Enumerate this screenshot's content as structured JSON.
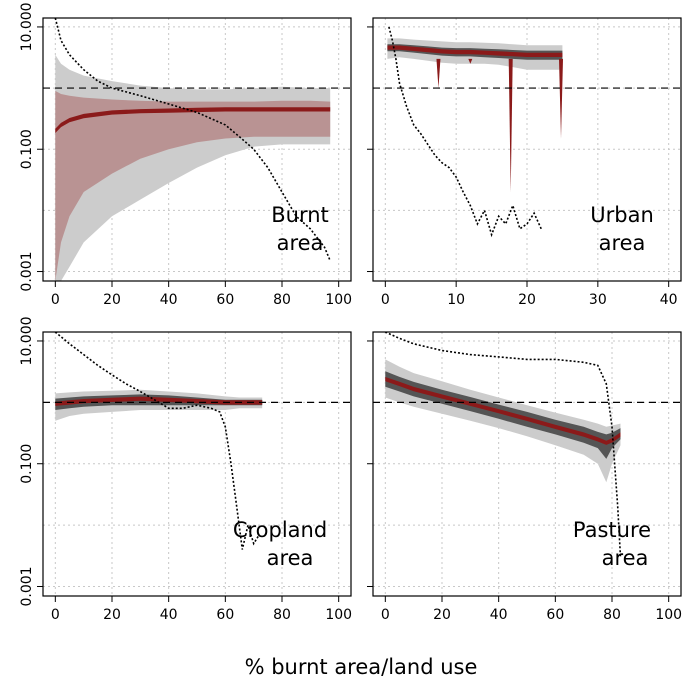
{
  "xlabel": "% burnt area/land use",
  "colors": {
    "band_red_dark": "#8b1a1a",
    "band_red_light": "#b99393",
    "band_grey_dark": "#555555",
    "band_grey_light": "#cccccc",
    "grid": "#c8c8c8"
  },
  "chart_data": [
    {
      "type": "area",
      "panel": "top-left",
      "label_lines": [
        "Burnt",
        "area"
      ],
      "xlim": [
        0,
        100
      ],
      "xticks": [
        0,
        20,
        40,
        60,
        80,
        100
      ],
      "ylim": [
        0.0007,
        14
      ],
      "log_y": true,
      "yticks": [
        0.001,
        0.1,
        10
      ],
      "ytick_labels": [
        "0.001",
        "0.100",
        "10.000"
      ],
      "reference_y": 1,
      "band": {
        "x": [
          0,
          2,
          5,
          10,
          20,
          30,
          40,
          50,
          60,
          70,
          80,
          90,
          97
        ],
        "outer_low": [
          0.0007,
          0.0007,
          0.0012,
          0.003,
          0.008,
          0.015,
          0.028,
          0.05,
          0.08,
          0.11,
          0.12,
          0.12,
          0.12
        ],
        "inner_low": [
          0.0007,
          0.003,
          0.008,
          0.02,
          0.04,
          0.07,
          0.1,
          0.13,
          0.15,
          0.16,
          0.16,
          0.16,
          0.16
        ],
        "median": [
          0.2,
          0.25,
          0.3,
          0.35,
          0.4,
          0.42,
          0.43,
          0.44,
          0.45,
          0.45,
          0.45,
          0.45,
          0.45
        ],
        "inner_high": [
          0.9,
          0.8,
          0.75,
          0.7,
          0.65,
          0.62,
          0.6,
          0.6,
          0.6,
          0.6,
          0.62,
          0.62,
          0.6
        ],
        "outer_high": [
          3.5,
          2.5,
          2.0,
          1.6,
          1.3,
          1.1,
          1.0,
          0.95,
          0.95,
          1.0,
          1.05,
          1.0,
          1.0
        ]
      },
      "dotted_line": {
        "x": [
          0,
          2,
          5,
          10,
          15,
          20,
          30,
          40,
          50,
          60,
          65,
          70,
          75,
          80,
          85,
          90,
          95,
          97
        ],
        "y": [
          14,
          6,
          3.5,
          2.0,
          1.3,
          1.0,
          0.75,
          0.55,
          0.4,
          0.25,
          0.16,
          0.1,
          0.05,
          0.02,
          0.008,
          0.005,
          0.0025,
          0.0015
        ]
      }
    },
    {
      "type": "area",
      "panel": "top-right",
      "label_lines": [
        "Urban",
        "area"
      ],
      "xlim": [
        0,
        40
      ],
      "xticks": [
        0,
        10,
        20,
        30,
        40
      ],
      "ylim": [
        0.0007,
        14
      ],
      "log_y": true,
      "yticks": [
        0.001,
        0.1,
        10
      ],
      "ytick_labels": [
        "0.001",
        "0.100",
        "10.000"
      ],
      "reference_y": 1,
      "band": {
        "x": [
          0.3,
          2,
          4,
          6,
          8,
          10,
          12,
          14,
          16,
          18,
          20,
          22,
          24,
          25
        ],
        "outer_low": [
          3.0,
          3.2,
          3.0,
          2.8,
          2.6,
          2.5,
          2.5,
          2.5,
          2.4,
          2.2,
          2.0,
          2.0,
          2.0,
          2.0
        ],
        "inner_low": [
          4.0,
          4.0,
          3.8,
          3.6,
          3.4,
          3.3,
          3.3,
          3.2,
          3.1,
          3.0,
          2.9,
          2.9,
          2.9,
          2.9
        ],
        "median": [
          4.6,
          4.6,
          4.4,
          4.2,
          4.0,
          3.9,
          3.9,
          3.8,
          3.7,
          3.6,
          3.5,
          3.5,
          3.5,
          3.5
        ],
        "inner_high": [
          5.2,
          5.2,
          5.0,
          4.8,
          4.6,
          4.5,
          4.5,
          4.4,
          4.3,
          4.2,
          4.1,
          4.1,
          4.1,
          4.1
        ],
        "outer_high": [
          6.5,
          6.5,
          6.2,
          6.0,
          5.8,
          5.6,
          5.6,
          5.5,
          5.4,
          5.2,
          5.0,
          5.0,
          5.0,
          5.0
        ]
      },
      "dotted_line": {
        "x": [
          0.5,
          1,
          1.5,
          2,
          3,
          4,
          5,
          6,
          7,
          8,
          9,
          10,
          11,
          12,
          13,
          14,
          15,
          16,
          17,
          18,
          19,
          20,
          21,
          22
        ],
        "y": [
          10,
          6,
          3,
          1.2,
          0.5,
          0.25,
          0.18,
          0.12,
          0.08,
          0.06,
          0.05,
          0.035,
          0.02,
          0.012,
          0.006,
          0.01,
          0.004,
          0.008,
          0.006,
          0.012,
          0.005,
          0.006,
          0.009,
          0.005
        ]
      }
    },
    {
      "type": "area",
      "panel": "bottom-left",
      "label_lines": [
        "Cropland",
        "area"
      ],
      "xlim": [
        0,
        100
      ],
      "xticks": [
        0,
        20,
        40,
        60,
        80,
        100
      ],
      "ylim": [
        0.0007,
        14
      ],
      "log_y": true,
      "yticks": [
        0.001,
        0.1,
        10
      ],
      "ytick_labels": [
        "0.001",
        "0.100",
        "10.000"
      ],
      "reference_y": 1,
      "band": {
        "x": [
          0,
          5,
          10,
          20,
          30,
          40,
          50,
          60,
          65,
          70,
          73
        ],
        "outer_low": [
          0.5,
          0.6,
          0.65,
          0.7,
          0.75,
          0.75,
          0.75,
          0.75,
          0.8,
          0.8,
          0.8
        ],
        "inner_low": [
          0.75,
          0.8,
          0.85,
          0.9,
          0.9,
          0.9,
          0.9,
          0.9,
          0.9,
          0.9,
          0.9
        ],
        "median": [
          0.95,
          1.0,
          1.05,
          1.1,
          1.15,
          1.1,
          1.05,
          1.0,
          1.0,
          1.0,
          1.0
        ],
        "inner_high": [
          1.15,
          1.2,
          1.25,
          1.3,
          1.35,
          1.3,
          1.2,
          1.1,
          1.1,
          1.1,
          1.1
        ],
        "outer_high": [
          1.4,
          1.45,
          1.5,
          1.55,
          1.6,
          1.5,
          1.4,
          1.25,
          1.2,
          1.2,
          1.2
        ]
      },
      "dotted_line": {
        "x": [
          0,
          5,
          10,
          15,
          20,
          25,
          30,
          35,
          40,
          45,
          50,
          55,
          58,
          60,
          62,
          64,
          66,
          68,
          70,
          72
        ],
        "y": [
          14,
          9,
          6,
          4,
          2.8,
          2.0,
          1.5,
          1.1,
          0.8,
          0.8,
          0.9,
          0.8,
          0.7,
          0.4,
          0.1,
          0.02,
          0.004,
          0.01,
          0.005,
          0.007
        ]
      }
    },
    {
      "type": "area",
      "panel": "bottom-right",
      "label_lines": [
        "Pasture",
        "area"
      ],
      "xlim": [
        0,
        100
      ],
      "xticks": [
        0,
        20,
        40,
        60,
        80,
        100
      ],
      "ylim": [
        0.0007,
        14
      ],
      "log_y": true,
      "yticks": [
        0.001,
        0.1,
        10
      ],
      "ytick_labels": [
        "0.001",
        "0.100",
        "10.000"
      ],
      "reference_y": 1,
      "band": {
        "x": [
          0,
          5,
          10,
          20,
          30,
          40,
          50,
          60,
          70,
          75,
          78,
          80,
          83
        ],
        "outer_low": [
          1.2,
          1.0,
          0.85,
          0.65,
          0.5,
          0.38,
          0.28,
          0.2,
          0.14,
          0.1,
          0.05,
          0.1,
          0.2
        ],
        "inner_low": [
          1.8,
          1.5,
          1.25,
          0.95,
          0.72,
          0.54,
          0.4,
          0.3,
          0.22,
          0.18,
          0.12,
          0.18,
          0.25
        ],
        "median": [
          2.4,
          2.0,
          1.65,
          1.25,
          0.95,
          0.72,
          0.54,
          0.4,
          0.3,
          0.25,
          0.22,
          0.24,
          0.3
        ],
        "inner_high": [
          3.2,
          2.6,
          2.15,
          1.6,
          1.22,
          0.92,
          0.7,
          0.52,
          0.4,
          0.33,
          0.3,
          0.32,
          0.38
        ],
        "outer_high": [
          5.0,
          3.8,
          3.0,
          2.2,
          1.6,
          1.2,
          0.9,
          0.68,
          0.52,
          0.45,
          0.4,
          0.42,
          0.45
        ]
      },
      "dotted_line": {
        "x": [
          0,
          5,
          10,
          20,
          30,
          40,
          50,
          60,
          70,
          75,
          78,
          80,
          82,
          83
        ],
        "y": [
          14,
          11,
          9,
          7,
          6,
          5.5,
          5,
          5,
          4.5,
          4,
          2.0,
          0.4,
          0.02,
          0.003
        ]
      }
    }
  ]
}
